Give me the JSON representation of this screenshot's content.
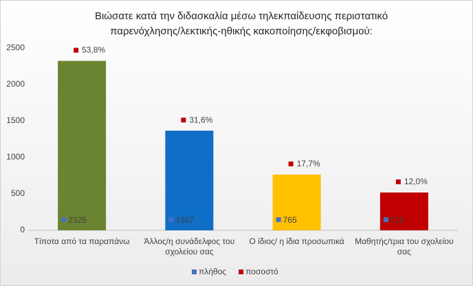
{
  "chart_data": {
    "type": "bar",
    "title": "Βιώσατε κατά την διδασκαλία μέσω τηλεκπαίδευσης περιστατικό παρενόχλησης/λεκτικής-ηθικής κακοποίησης/εκφοβισμού:",
    "categories": [
      "Τίποτα από τα παραπάνω",
      "Άλλος/η συνάδελφος του σχολείου σας",
      "Ο ίδιος/ η ίδια προσωπικά",
      "Μαθητής/τρια του σχολείου σας"
    ],
    "series": [
      {
        "name": "πλήθος",
        "color": "#4472c4",
        "colors": [
          "#6b8431",
          "#0f6fc6",
          "#ffc000",
          "#c00000"
        ],
        "values": [
          2325,
          1367,
          765,
          519
        ]
      },
      {
        "name": "ποσοστό",
        "color": "#c00000",
        "values": [
          53.8,
          31.6,
          17.7,
          12.0
        ],
        "value_labels": [
          "53,8%",
          "31,6%",
          "17,7%",
          "12,0%"
        ]
      }
    ],
    "ylim": [
      0,
      2500
    ],
    "yticks": [
      0,
      500,
      1000,
      1500,
      2000,
      2500
    ],
    "grid": false,
    "legend": "bottom"
  }
}
